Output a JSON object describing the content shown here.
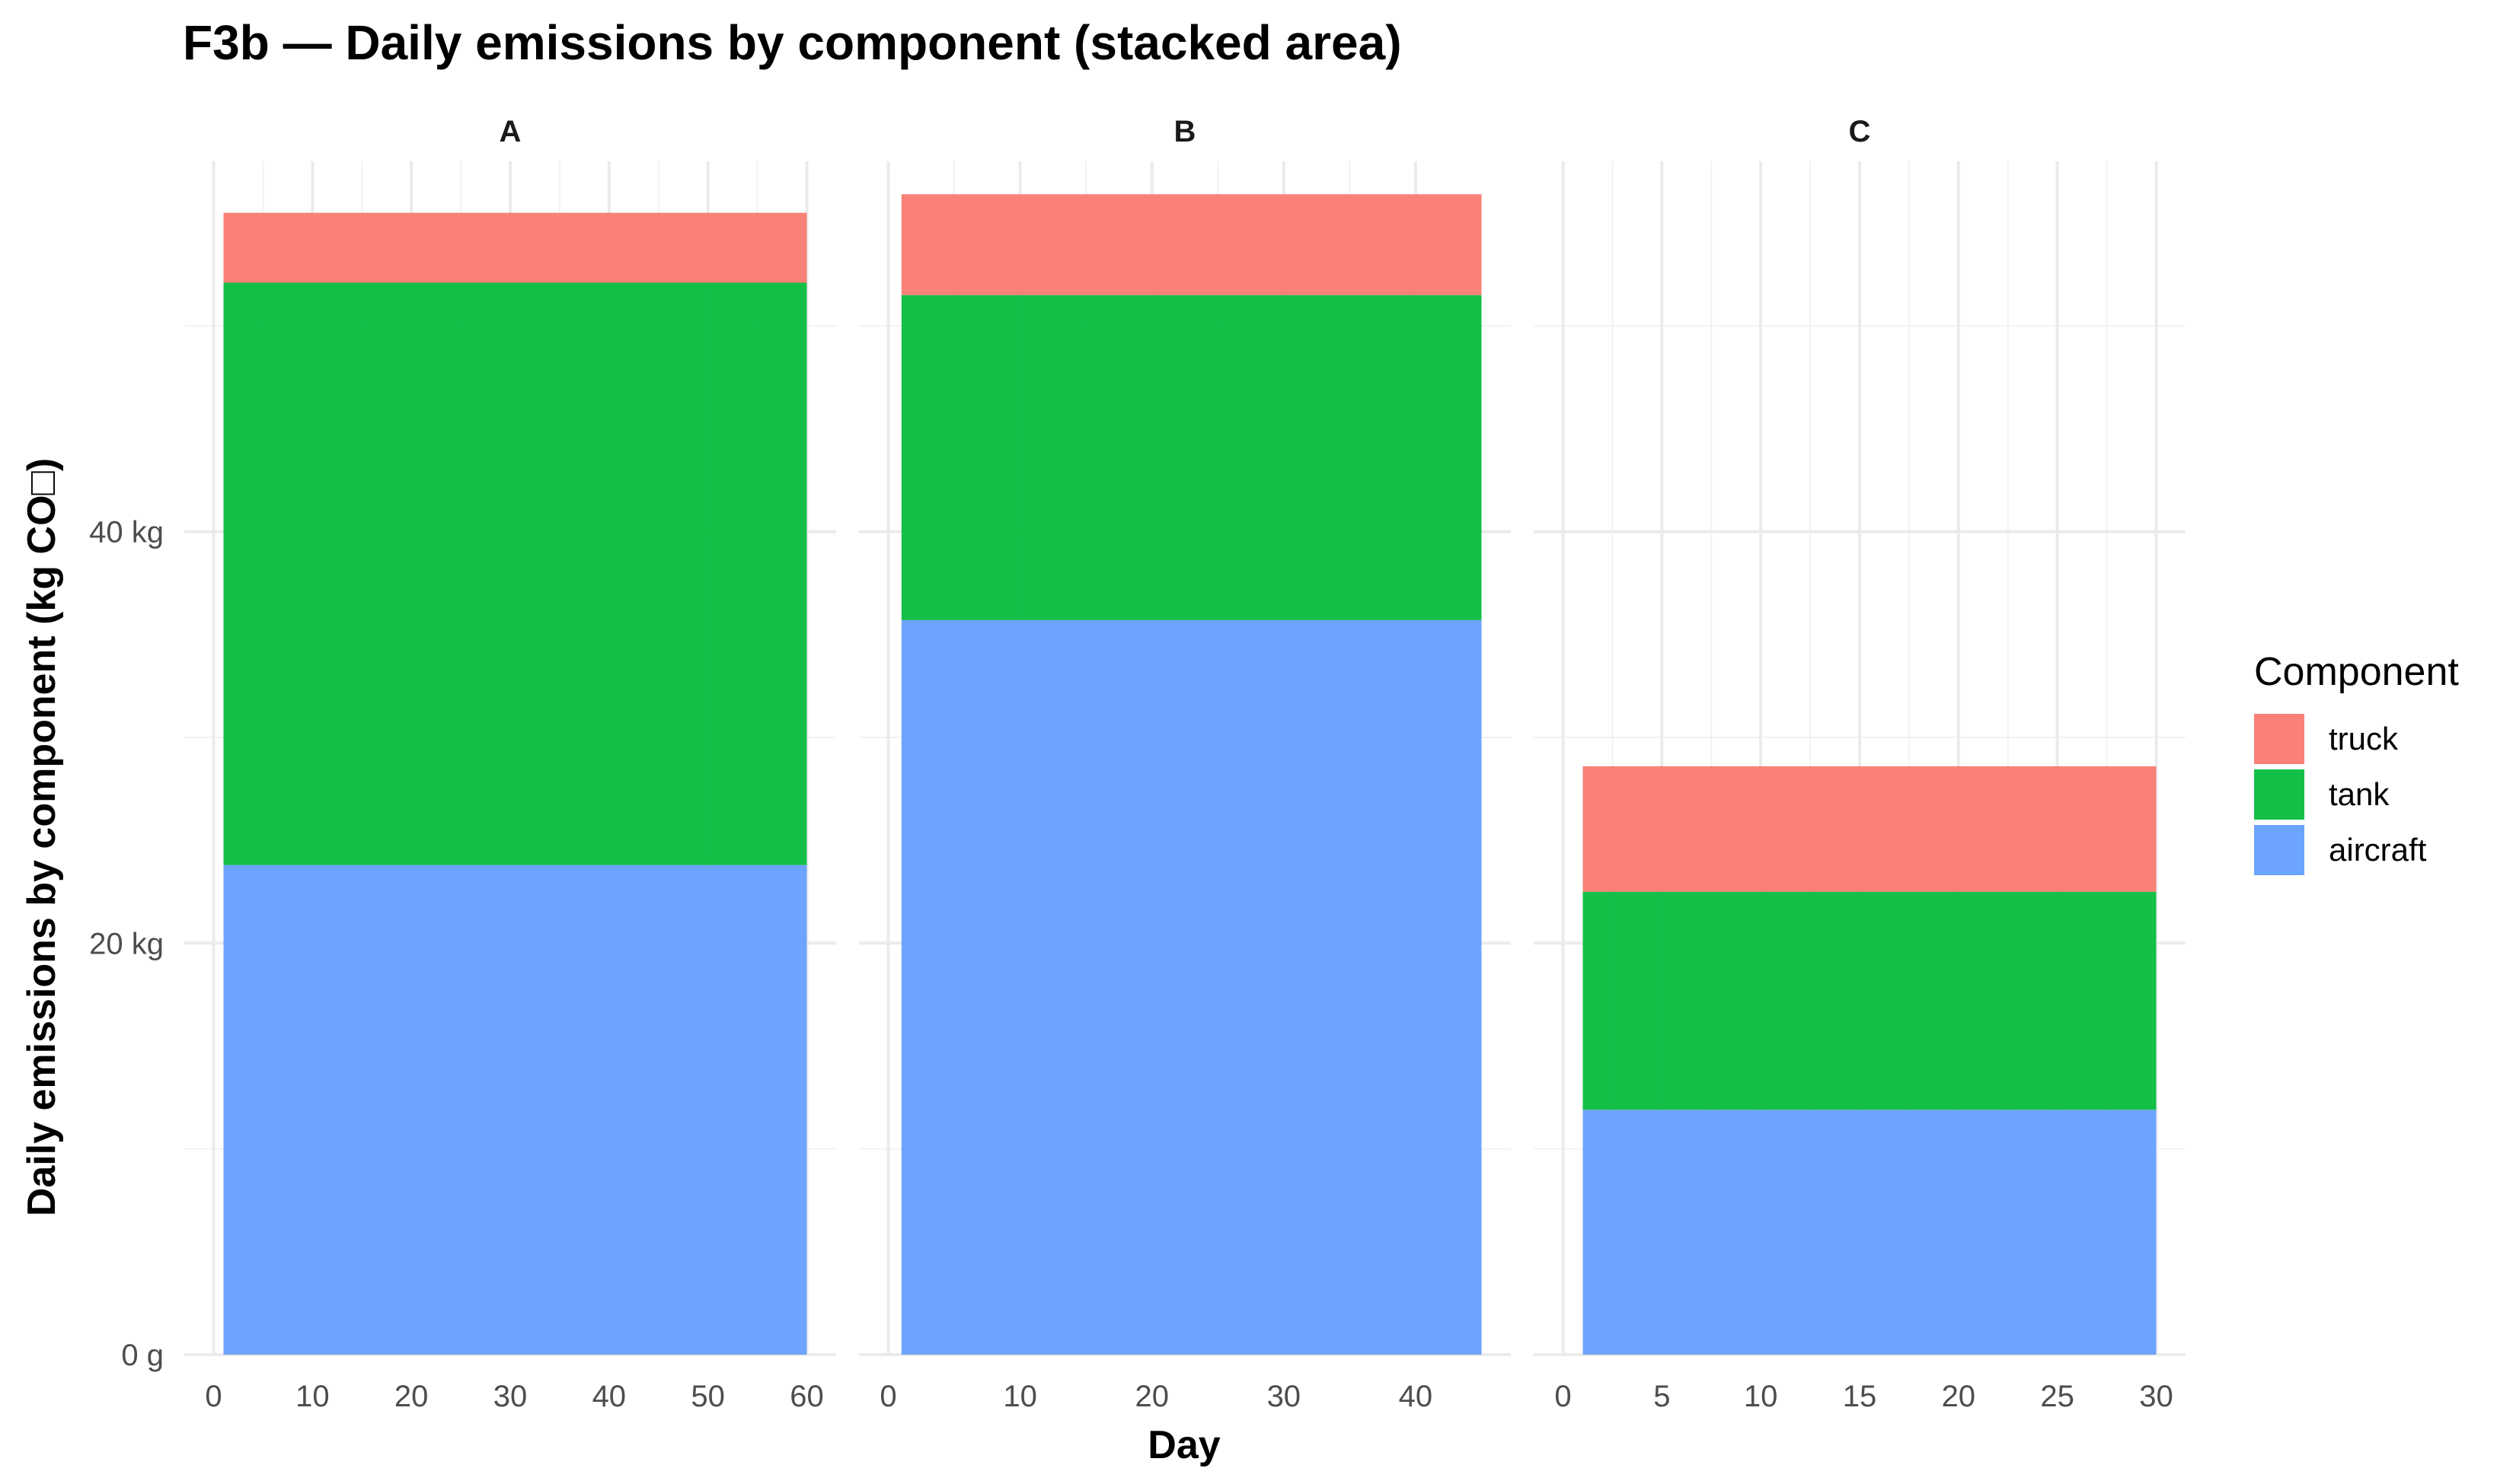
{
  "chart_data": {
    "type": "area",
    "stacked": true,
    "title": "F3b — Daily emissions by component (stacked area)",
    "xlabel": "Day",
    "ylabel": "Daily emissions by component (kg CO□)",
    "ylim": [
      0,
      58
    ],
    "y_ticks": [
      {
        "value": 0,
        "label": "0 g"
      },
      {
        "value": 20,
        "label": "20 kg"
      },
      {
        "value": 40,
        "label": "40 kg"
      }
    ],
    "grid": true,
    "legend": {
      "title": "Component",
      "position": "right",
      "entries": [
        "truck",
        "tank",
        "aircraft"
      ]
    },
    "colors": {
      "truck": "#f8766d",
      "tank": "#00ba38",
      "aircraft": "#619cff"
    },
    "panels": [
      {
        "name": "A",
        "x": [
          1,
          60
        ],
        "xlim": [
          0,
          60
        ],
        "x_ticks": [
          0,
          10,
          20,
          30,
          40,
          50,
          60
        ],
        "series": [
          {
            "name": "aircraft",
            "values": [
              23.8,
              23.8
            ]
          },
          {
            "name": "tank",
            "values": [
              28.3,
              28.3
            ]
          },
          {
            "name": "truck",
            "values": [
              3.4,
              3.4
            ]
          }
        ]
      },
      {
        "name": "B",
        "x": [
          1,
          45
        ],
        "xlim": [
          0,
          45
        ],
        "x_ticks": [
          0,
          10,
          20,
          30,
          40
        ],
        "series": [
          {
            "name": "aircraft",
            "values": [
              35.7,
              35.7
            ]
          },
          {
            "name": "tank",
            "values": [
              15.8,
              15.8
            ]
          },
          {
            "name": "truck",
            "values": [
              4.9,
              4.9
            ]
          }
        ]
      },
      {
        "name": "C",
        "x": [
          1,
          30
        ],
        "xlim": [
          0,
          30
        ],
        "x_ticks": [
          0,
          5,
          10,
          15,
          20,
          25,
          30
        ],
        "series": [
          {
            "name": "aircraft",
            "values": [
              11.9,
              11.9
            ]
          },
          {
            "name": "tank",
            "values": [
              10.6,
              10.6
            ]
          },
          {
            "name": "truck",
            "values": [
              6.1,
              6.1
            ]
          }
        ]
      }
    ]
  }
}
